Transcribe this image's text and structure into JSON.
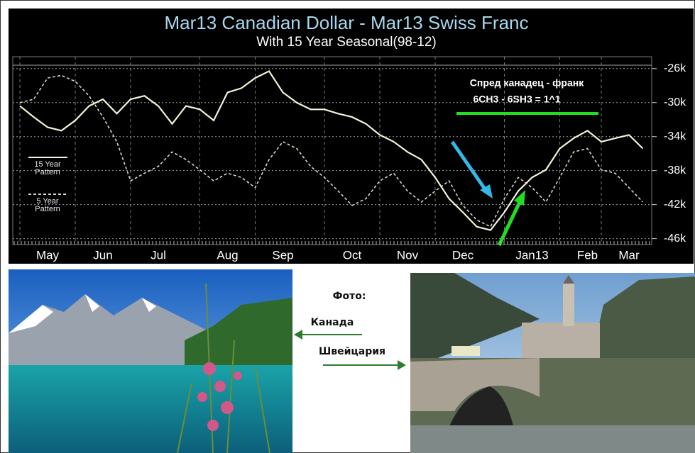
{
  "chart_data": {
    "type": "line",
    "title": "Mar13 Canadian Dollar - Mar13 Swiss Franc",
    "subtitle": "With 15 Year Seasonal(98-12)",
    "annotations": [
      "Спред канадец - франк",
      "6CH3 - 6SH3 = 1^1"
    ],
    "categories": [
      null,
      null,
      "May",
      null,
      null,
      null,
      "Jun",
      null,
      null,
      null,
      "Jul",
      null,
      null,
      null,
      null,
      "Aug",
      null,
      null,
      null,
      "Sep",
      null,
      null,
      null,
      null,
      "Oct",
      null,
      null,
      null,
      "Nov",
      null,
      null,
      null,
      "Dec",
      null,
      null,
      null,
      null,
      "Jan13",
      null,
      null,
      null,
      "Feb",
      null,
      null,
      "Mar",
      null
    ],
    "series": [
      {
        "name": "15 Year Pattern",
        "color": "#f2f2d8",
        "dashed": false,
        "values": [
          -30400,
          -31700,
          -32900,
          -33300,
          -32100,
          -30400,
          -29600,
          -31300,
          -29600,
          -29200,
          -30400,
          -32500,
          -30400,
          -30800,
          -32100,
          -28800,
          -28300,
          -27100,
          -26300,
          -28800,
          -30000,
          -30800,
          -30800,
          -31300,
          -31700,
          -32500,
          -33800,
          -34600,
          -35800,
          -36700,
          -38800,
          -41300,
          -42900,
          -44600,
          -45000,
          -42900,
          -40400,
          -38800,
          -37900,
          -35400,
          -34200,
          -33300,
          -34600,
          -34200,
          -33800,
          -35400
        ]
      },
      {
        "name": "5 Year Pattern",
        "color": "#d8d8c8",
        "dashed": true,
        "values": [
          -30000,
          -29600,
          -27100,
          -26800,
          -27500,
          -29200,
          -31700,
          -34600,
          -39200,
          -38300,
          -37500,
          -35800,
          -36700,
          -37900,
          -39200,
          -38300,
          -38800,
          -40000,
          -36700,
          -34600,
          -35400,
          -37500,
          -38800,
          -40400,
          -42100,
          -41300,
          -39200,
          -38300,
          -40400,
          -41700,
          -40400,
          -39200,
          -42100,
          -43800,
          -44600,
          -41300,
          -38800,
          -40000,
          -41700,
          -38800,
          -35800,
          -35400,
          -37900,
          -38300,
          -40000,
          -41700
        ]
      }
    ],
    "ylim": [
      -46700,
      -24600
    ],
    "yticks": [
      {
        "value": -26000,
        "label": "-26k"
      },
      {
        "value": -30000,
        "label": "-30k"
      },
      {
        "value": -34000,
        "label": "-34k"
      },
      {
        "value": -38000,
        "label": "-38k"
      },
      {
        "value": -42000,
        "label": "-42k"
      },
      {
        "value": -46000,
        "label": "-46k"
      }
    ],
    "grid": true
  },
  "photos": {
    "label": "Фото:",
    "canada": "Канада",
    "switzerland": "Швейцария"
  }
}
